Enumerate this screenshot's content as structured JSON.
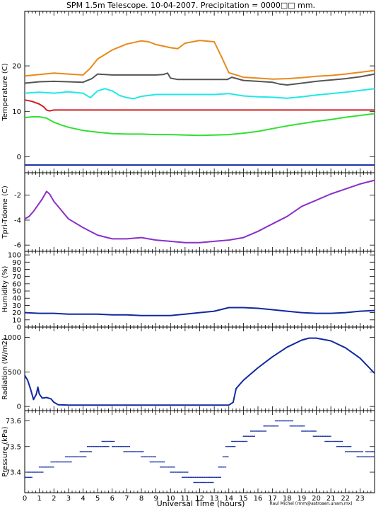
{
  "title": "SPM 1.5m Telescope. 10-04-2007. Precipitation = 0000□□ mm.",
  "xlabel": "Universal Time (hours)",
  "credit": "Raul Michel (rmm@astrosen.unam.mx)",
  "x_ticks": [
    "0",
    "1",
    "2",
    "3",
    "4",
    "5",
    "6",
    "7",
    "8",
    "9",
    "10",
    "11",
    "12",
    "13",
    "14",
    "15",
    "16",
    "17",
    "18",
    "19",
    "20",
    "21",
    "22",
    "23"
  ],
  "chart_data": [
    {
      "type": "line",
      "ylabel": "Temperature (C)",
      "xlim": [
        0,
        24
      ],
      "ylim": [
        -3.5,
        32
      ],
      "y_ticks": [
        0,
        10,
        20
      ],
      "series": [
        {
          "color": "#e8891c",
          "x": [
            0,
            1,
            2,
            3,
            4,
            4.5,
            5,
            6,
            7,
            8,
            8.5,
            9,
            10,
            10.5,
            11,
            12,
            13,
            13.5,
            14,
            15,
            16,
            17,
            18,
            19,
            20,
            21,
            22,
            23,
            24
          ],
          "y": [
            17.8,
            18.1,
            18.4,
            18.2,
            18.0,
            19.5,
            21.5,
            23.5,
            24.8,
            25.5,
            25.3,
            24.7,
            24.0,
            23.8,
            25.0,
            25.6,
            25.3,
            22.0,
            18.5,
            17.5,
            17.3,
            17.1,
            17.2,
            17.4,
            17.7,
            17.9,
            18.2,
            18.6,
            19.0
          ]
        },
        {
          "color": "#555555",
          "x": [
            0,
            1,
            2,
            3,
            4,
            4.3,
            4.6,
            5,
            6,
            7,
            8,
            9,
            9.5,
            9.8,
            10,
            10.5,
            11,
            12,
            13,
            13.9,
            14.2,
            15,
            16,
            17,
            17.5,
            18,
            19,
            20,
            21,
            22,
            23,
            24
          ],
          "y": [
            16.2,
            16.5,
            16.6,
            16.5,
            16.4,
            16.8,
            17.2,
            18.2,
            18.0,
            18.0,
            18.0,
            18.0,
            18.1,
            18.4,
            17.3,
            17.0,
            17.0,
            17.0,
            17.0,
            17.0,
            17.5,
            16.8,
            16.6,
            16.4,
            16.0,
            15.8,
            16.2,
            16.6,
            16.9,
            17.2,
            17.6,
            18.2
          ]
        },
        {
          "color": "#20e8e8",
          "x": [
            0,
            1,
            2,
            3,
            4,
            4.5,
            5,
            5.5,
            6,
            6.5,
            7,
            7.5,
            8,
            9,
            10,
            11,
            12,
            13,
            14,
            15,
            16,
            17,
            18,
            19,
            20,
            21,
            22,
            23,
            24
          ],
          "y": [
            14.0,
            14.2,
            14.0,
            14.3,
            14.0,
            13.0,
            14.5,
            15.0,
            14.5,
            13.5,
            13.0,
            12.8,
            13.3,
            13.7,
            13.7,
            13.7,
            13.7,
            13.7,
            13.9,
            13.4,
            13.2,
            13.1,
            12.9,
            13.2,
            13.6,
            13.9,
            14.2,
            14.6,
            15.0
          ]
        },
        {
          "color": "#d02020",
          "x": [
            0,
            0.5,
            1,
            1.3,
            1.5,
            1.7,
            2,
            3,
            6,
            10,
            14,
            18,
            22,
            24
          ],
          "y": [
            12.5,
            12.2,
            11.6,
            11.0,
            10.3,
            10.1,
            10.3,
            10.3,
            10.3,
            10.3,
            10.3,
            10.3,
            10.3,
            10.3
          ]
        },
        {
          "color": "#30e030",
          "x": [
            0,
            0.5,
            1,
            1.5,
            2,
            2.5,
            3,
            4,
            5,
            6,
            7,
            8,
            9,
            10,
            11,
            12,
            13,
            14,
            15,
            16,
            17,
            18,
            19,
            20,
            21,
            22,
            23,
            24
          ],
          "y": [
            8.6,
            8.8,
            8.8,
            8.5,
            7.6,
            7.0,
            6.5,
            5.8,
            5.4,
            5.1,
            5.0,
            5.0,
            4.9,
            4.9,
            4.8,
            4.7,
            4.8,
            4.9,
            5.2,
            5.6,
            6.2,
            6.8,
            7.3,
            7.8,
            8.2,
            8.7,
            9.1,
            9.5
          ]
        },
        {
          "color": "#102aa0",
          "x": [
            0,
            24
          ],
          "y": [
            -1.8,
            -1.8
          ]
        }
      ]
    },
    {
      "type": "line",
      "ylabel": "Tpri-Tdome (C)",
      "xlim": [
        0,
        24
      ],
      "ylim": [
        -6.5,
        -0.2
      ],
      "y_ticks": [
        -6,
        -4,
        -2
      ],
      "series": [
        {
          "color": "#8a30c8",
          "x": [
            0,
            0.3,
            0.6,
            0.9,
            1.2,
            1.5,
            1.7,
            2,
            2.5,
            3,
            4,
            5,
            6,
            7,
            8,
            9,
            10,
            11,
            12,
            13,
            14,
            15,
            16,
            17,
            18,
            19,
            20,
            21,
            22,
            23,
            24
          ],
          "y": [
            -3.9,
            -3.7,
            -3.3,
            -2.8,
            -2.3,
            -1.7,
            -1.9,
            -2.5,
            -3.2,
            -3.9,
            -4.6,
            -5.2,
            -5.5,
            -5.5,
            -5.4,
            -5.6,
            -5.7,
            -5.8,
            -5.8,
            -5.7,
            -5.6,
            -5.4,
            -4.9,
            -4.3,
            -3.7,
            -2.9,
            -2.4,
            -1.9,
            -1.5,
            -1.1,
            -0.8
          ]
        }
      ]
    },
    {
      "type": "line",
      "ylabel": "Humidity (%)",
      "xlim": [
        0,
        24
      ],
      "ylim": [
        0,
        105
      ],
      "y_ticks": [
        0,
        10,
        20,
        30,
        40,
        50,
        60,
        70,
        80,
        90,
        100
      ],
      "series": [
        {
          "color": "#102aa0",
          "x": [
            0,
            1,
            2,
            3,
            4,
            5,
            6,
            7,
            8,
            9,
            10,
            11,
            12,
            13,
            14,
            15,
            16,
            17,
            18,
            19,
            20,
            21,
            22,
            23,
            24
          ],
          "y": [
            20,
            19,
            19,
            18,
            18,
            18,
            17,
            17,
            16,
            16,
            16,
            18,
            20,
            22,
            27,
            27,
            26,
            24,
            22,
            20,
            19,
            19,
            20,
            22,
            23
          ]
        }
      ]
    },
    {
      "type": "line",
      "ylabel": "Radiation (W/m2)",
      "xlim": [
        0,
        24
      ],
      "ylim": [
        -60,
        1150
      ],
      "y_ticks": [
        0,
        500,
        1000
      ],
      "series": [
        {
          "color": "#102aa0",
          "x": [
            0,
            0.2,
            0.4,
            0.6,
            0.8,
            0.9,
            1.0,
            1.2,
            1.5,
            1.8,
            2,
            2.3,
            3,
            5,
            8,
            11,
            14,
            14.3,
            14.5,
            15,
            16,
            17,
            18,
            19,
            19.5,
            20,
            21,
            22,
            23,
            24
          ],
          "y": [
            450,
            380,
            250,
            100,
            180,
            280,
            180,
            120,
            130,
            110,
            60,
            25,
            20,
            20,
            20,
            20,
            20,
            60,
            260,
            380,
            560,
            720,
            860,
            960,
            990,
            990,
            950,
            850,
            700,
            480
          ]
        }
      ]
    },
    {
      "type": "scatter",
      "ylabel": "Pressure (kPa)",
      "xlim": [
        0,
        24
      ],
      "ylim": [
        73.32,
        73.64
      ],
      "y_ticks": [
        73.4,
        73.5,
        73.6
      ],
      "series": [
        {
          "color": "#102aa0",
          "steps": [
            [
              0.0,
              0.5,
              73.38
            ],
            [
              0.2,
              1.3,
              73.4
            ],
            [
              1.0,
              2.0,
              73.42
            ],
            [
              1.8,
              3.2,
              73.44
            ],
            [
              2.8,
              4.2,
              73.46
            ],
            [
              3.8,
              4.6,
              73.48
            ],
            [
              4.3,
              5.8,
              73.5
            ],
            [
              5.3,
              6.2,
              73.52
            ],
            [
              6.0,
              7.2,
              73.5
            ],
            [
              6.8,
              8.2,
              73.48
            ],
            [
              8.0,
              9.0,
              73.46
            ],
            [
              8.6,
              9.6,
              73.44
            ],
            [
              9.3,
              10.3,
              73.42
            ],
            [
              10.0,
              11.2,
              73.4
            ],
            [
              10.8,
              12.6,
              73.38
            ],
            [
              11.6,
              13.0,
              73.36
            ],
            [
              12.6,
              13.5,
              73.38
            ],
            [
              13.3,
              13.8,
              73.42
            ],
            [
              13.6,
              14.0,
              73.46
            ],
            [
              13.8,
              14.5,
              73.5
            ],
            [
              14.2,
              15.3,
              73.52
            ],
            [
              15.0,
              15.8,
              73.54
            ],
            [
              15.5,
              16.6,
              73.56
            ],
            [
              16.4,
              17.4,
              73.58
            ],
            [
              17.2,
              18.4,
              73.6
            ],
            [
              18.2,
              19.2,
              73.58
            ],
            [
              19.0,
              20.0,
              73.56
            ],
            [
              19.8,
              21.0,
              73.54
            ],
            [
              20.6,
              21.8,
              73.52
            ],
            [
              21.4,
              22.4,
              73.5
            ],
            [
              22.0,
              23.2,
              73.48
            ],
            [
              22.8,
              24.0,
              73.46
            ],
            [
              23.4,
              24.0,
              73.48
            ]
          ]
        }
      ]
    }
  ]
}
